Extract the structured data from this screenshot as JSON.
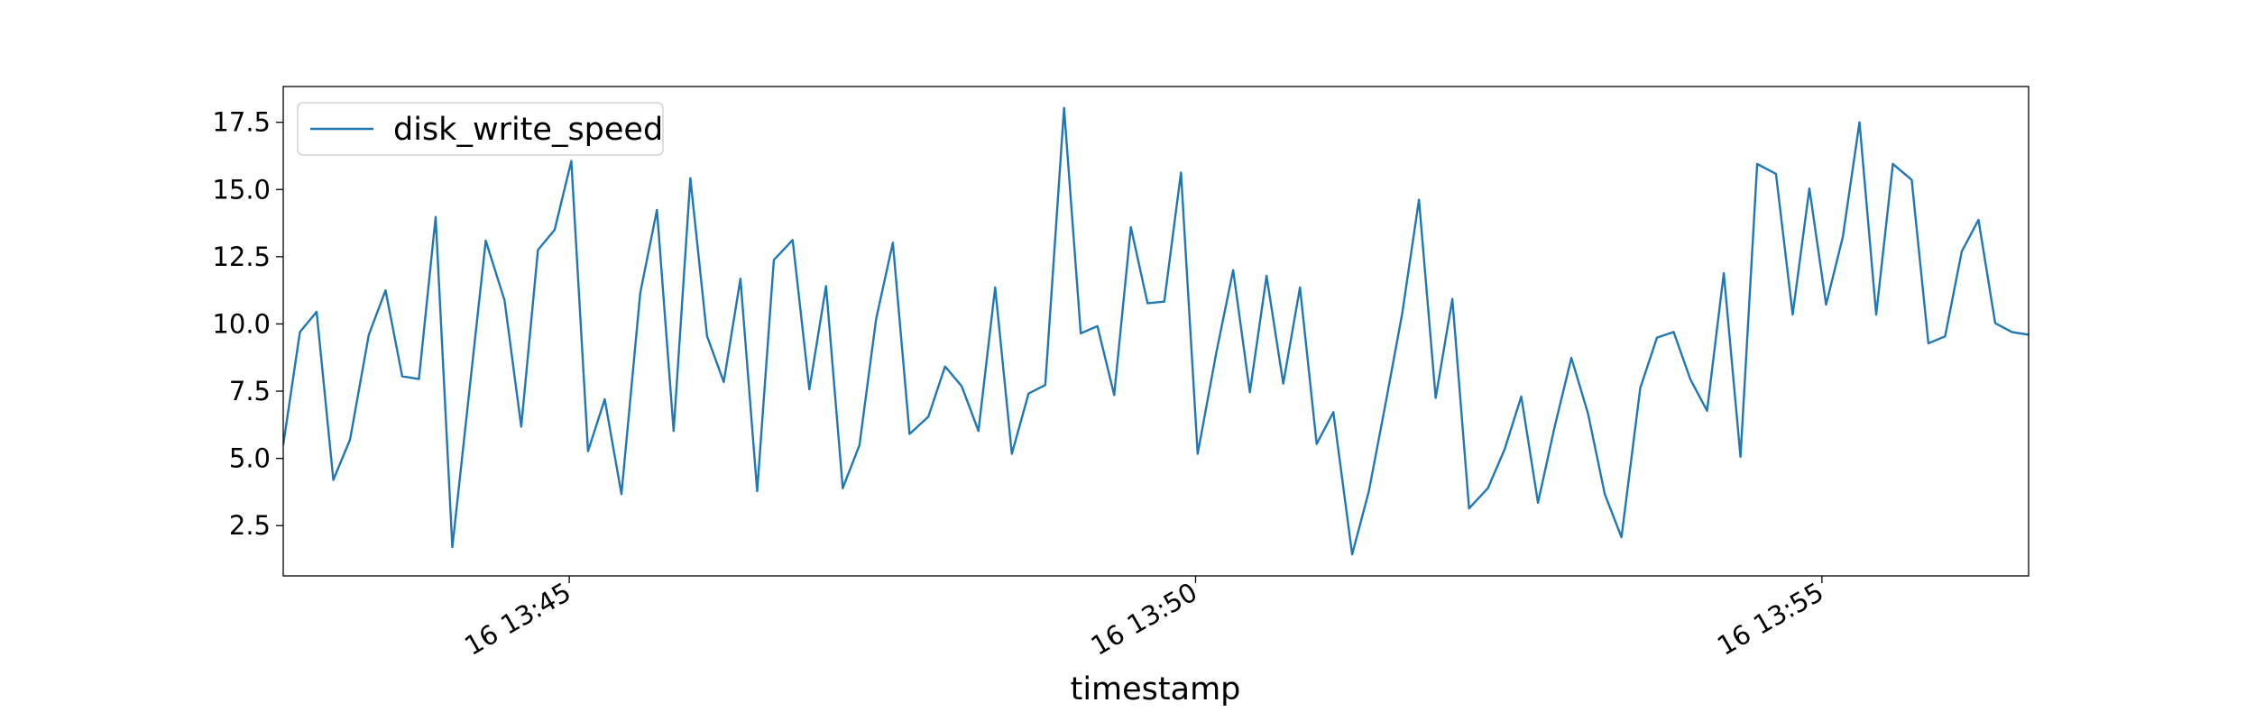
{
  "chart_data": {
    "type": "line",
    "x_label": "timestamp",
    "x": [
      "13:42:43",
      "13:42:51",
      "13:42:59",
      "13:43:07",
      "13:43:15",
      "13:43:24",
      "13:43:32",
      "13:43:40",
      "13:43:48",
      "13:43:56",
      "13:44:04",
      "13:44:12",
      "13:44:20",
      "13:44:29",
      "13:44:37",
      "13:44:45",
      "13:44:53",
      "13:45:01",
      "13:45:09",
      "13:45:17",
      "13:45:25",
      "13:45:34",
      "13:45:42",
      "13:45:50",
      "13:45:58",
      "13:46:06",
      "13:46:14",
      "13:46:22",
      "13:46:30",
      "13:46:38",
      "13:46:47",
      "13:46:55",
      "13:47:03",
      "13:47:11",
      "13:47:19",
      "13:47:27",
      "13:47:35",
      "13:47:43",
      "13:47:52",
      "13:48:00",
      "13:48:08",
      "13:48:16",
      "13:48:24",
      "13:48:32",
      "13:48:40",
      "13:48:48",
      "13:48:57",
      "13:49:05",
      "13:49:13",
      "13:49:21",
      "13:49:29",
      "13:49:37",
      "13:49:45",
      "13:49:53",
      "13:50:01",
      "13:50:10",
      "13:50:18",
      "13:50:26",
      "13:50:34",
      "13:50:42",
      "13:50:50",
      "13:50:58",
      "13:51:06",
      "13:51:15",
      "13:51:23",
      "13:51:31",
      "13:51:39",
      "13:51:47",
      "13:51:55",
      "13:52:03",
      "13:52:11",
      "13:52:20",
      "13:52:28",
      "13:52:36",
      "13:52:44",
      "13:52:52",
      "13:53:00",
      "13:53:08",
      "13:53:16",
      "13:53:24",
      "13:53:33",
      "13:53:41",
      "13:53:49",
      "13:53:57",
      "13:54:05",
      "13:54:13",
      "13:54:21",
      "13:54:29",
      "13:54:38",
      "13:54:46",
      "13:54:54",
      "13:55:02",
      "13:55:10",
      "13:55:18",
      "13:55:26",
      "13:55:34",
      "13:55:43",
      "13:55:51",
      "13:55:59",
      "13:56:07",
      "13:56:15",
      "13:56:23",
      "13:56:31",
      "13:56:39"
    ],
    "series": [
      {
        "name": "disk_write_speed",
        "color": "#1f77b4",
        "values": [
          5.5,
          9.7,
          10.45,
          4.2,
          5.7,
          9.6,
          11.25,
          8.05,
          7.95,
          13.98,
          1.7,
          7.4,
          13.1,
          10.88,
          6.18,
          12.75,
          13.5,
          16.06,
          5.27,
          7.2,
          3.67,
          11.15,
          14.24,
          6.02,
          15.42,
          9.55,
          7.84,
          11.68,
          3.78,
          12.38,
          13.12,
          7.57,
          11.41,
          3.89,
          5.49,
          10.19,
          13.02,
          5.91,
          6.55,
          8.42,
          7.68,
          6.02,
          11.36,
          5.17,
          7.41,
          7.73,
          18.03,
          9.65,
          9.92,
          7.36,
          13.6,
          10.77,
          10.83,
          15.63,
          5.17,
          8.96,
          12.0,
          7.46,
          11.79,
          7.78,
          11.36,
          5.54,
          6.72,
          1.43,
          3.78,
          7.04,
          10.4,
          14.62,
          7.25,
          10.93,
          3.14,
          3.89,
          5.33,
          7.3,
          3.35,
          6.18,
          8.74,
          6.66,
          3.67,
          2.07,
          7.62,
          9.49,
          9.7,
          7.94,
          6.77,
          11.89,
          5.06,
          15.95,
          15.58,
          10.35,
          15.04,
          10.72,
          13.23,
          17.5,
          10.35,
          15.95,
          15.36,
          9.28,
          9.54,
          12.7,
          13.87,
          10.03,
          9.7,
          9.6
        ]
      }
    ],
    "xlim": [
      "13:42:43",
      "13:56:39"
    ],
    "xticks": [
      {
        "value": "13:45:00",
        "label": "16 13:45"
      },
      {
        "value": "13:50:00",
        "label": "16 13:50"
      },
      {
        "value": "13:55:00",
        "label": "16 13:55"
      }
    ],
    "ylim": [
      0.63,
      18.83
    ],
    "yticks": [
      2.5,
      {
        "value": 5,
        "label": "5.0"
      },
      7.5,
      {
        "value": 10,
        "label": "10.0"
      },
      12.5,
      {
        "value": 15,
        "label": "15.0"
      },
      17.5
    ],
    "legend": "upper left",
    "grid": false
  }
}
